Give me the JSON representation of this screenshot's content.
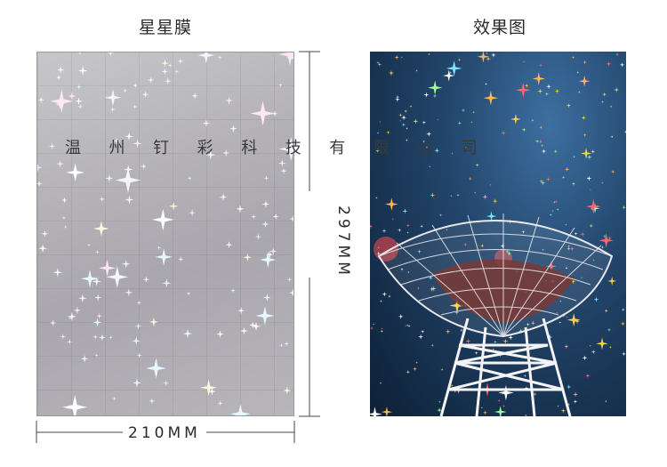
{
  "titles": {
    "left": "星星膜",
    "right": "效果图"
  },
  "watermark": [
    "温",
    "州",
    "钉",
    "彩",
    "科",
    "技",
    "有",
    "限",
    "公",
    "司"
  ],
  "dimensions": {
    "width": "210MM",
    "height": "297MM"
  },
  "images": {
    "left": "star holographic film sample",
    "right": "radio telescope dish under starry sky"
  },
  "colors": {
    "film_base": "#b8b6bb",
    "sky": "#1c3a5c",
    "text": "#2a2a2a"
  }
}
